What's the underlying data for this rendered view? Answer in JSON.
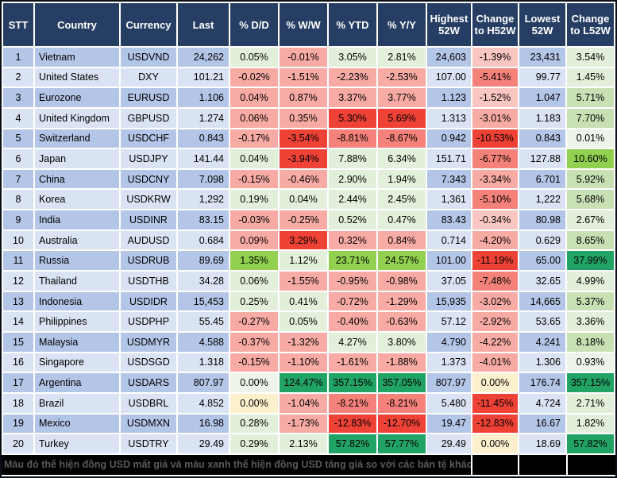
{
  "palette": {
    "header_bg": "#263e63",
    "header_text": "#ffffff",
    "row_odd": "#b4c6e7",
    "row_even": "#dae3f3",
    "grid_gap": "#ffffff",
    "frame_border": "#0b0f1a",
    "footer_bg": "#000000",
    "footer_text": "#5a5a5a",
    "G0": "#eef5e8",
    "G1": "#e2efda",
    "G2": "#c9e0b4",
    "G3": "#92d050",
    "G4": "#21a366",
    "Y": "#fdf0cd",
    "P1": "#fbc6c1",
    "P2": "#f8aba4",
    "R3": "#f5827a",
    "R4": "#ef4237"
  },
  "chart_data": {
    "type": "table",
    "title": "",
    "columns": [
      "STT",
      "Country",
      "Currency",
      "Last",
      "% D/D",
      "% W/W",
      "% YTD",
      "% Y/Y",
      "Highest 52W",
      "Change to H52W",
      "Lowest 52W",
      "Change to L52W"
    ],
    "column_keys": [
      "stt",
      "country",
      "currency",
      "last",
      "pct-dd",
      "pct-ww",
      "pct-ytd",
      "pct-yy",
      "highest-52w",
      "change-to-h52w",
      "lowest-52w",
      "change-to-l52w"
    ],
    "rows": [
      [
        "1",
        "Vietnam",
        "USDVND",
        "24,262",
        "0.05%",
        "-0.01%",
        "3.05%",
        "2.81%",
        "24,603",
        "-1.39%",
        "23,431",
        "3.54%"
      ],
      [
        "2",
        "United States",
        "DXY",
        "101.21",
        "-0.02%",
        "-1.51%",
        "-2.23%",
        "-2.53%",
        "107.00",
        "-5.41%",
        "99.77",
        "1.45%"
      ],
      [
        "3",
        "Eurozone",
        "EURUSD",
        "1.106",
        "0.04%",
        "0.87%",
        "3.37%",
        "3.77%",
        "1.123",
        "-1.52%",
        "1.047",
        "5.71%"
      ],
      [
        "4",
        "United Kingdom",
        "GBPUSD",
        "1.274",
        "0.06%",
        "0.35%",
        "5.30%",
        "5.69%",
        "1.313",
        "-3.01%",
        "1.183",
        "7.70%"
      ],
      [
        "5",
        "Switzerland",
        "USDCHF",
        "0.843",
        "-0.17%",
        "-3.54%",
        "-8.81%",
        "-8.67%",
        "0.942",
        "-10.53%",
        "0.843",
        "0.01%"
      ],
      [
        "6",
        "Japan",
        "USDJPY",
        "141.44",
        "0.04%",
        "-3.94%",
        "7.88%",
        "6.34%",
        "151.71",
        "-6.77%",
        "127.88",
        "10.60%"
      ],
      [
        "7",
        "China",
        "USDCNY",
        "7.098",
        "-0.15%",
        "-0.46%",
        "2.90%",
        "1.94%",
        "7.343",
        "-3.34%",
        "6.701",
        "5.92%"
      ],
      [
        "8",
        "Korea",
        "USDKRW",
        "1,292",
        "0.19%",
        "0.04%",
        "2.44%",
        "2.45%",
        "1,361",
        "-5.10%",
        "1,222",
        "5.68%"
      ],
      [
        "9",
        "India",
        "USDINR",
        "83.15",
        "-0.03%",
        "-0.25%",
        "0.52%",
        "0.47%",
        "83.43",
        "-0.34%",
        "80.98",
        "2.67%"
      ],
      [
        "10",
        "Australia",
        "AUDUSD",
        "0.684",
        "0.09%",
        "3.29%",
        "0.32%",
        "0.84%",
        "0.714",
        "-4.20%",
        "0.629",
        "8.65%"
      ],
      [
        "11",
        "Russia",
        "USDRUB",
        "89.69",
        "1.35%",
        "1.12%",
        "23.71%",
        "24.57%",
        "101.00",
        "-11.19%",
        "65.00",
        "37.99%"
      ],
      [
        "12",
        "Thailand",
        "USDTHB",
        "34.28",
        "0.06%",
        "-1.55%",
        "-0.95%",
        "-0.98%",
        "37.05",
        "-7.48%",
        "32.65",
        "4.99%"
      ],
      [
        "13",
        "Indonesia",
        "USDIDR",
        "15,453",
        "0.25%",
        "0.41%",
        "-0.72%",
        "-1.29%",
        "15,935",
        "-3.02%",
        "14,665",
        "5.37%"
      ],
      [
        "14",
        "Philippines",
        "USDPHP",
        "55.45",
        "-0.27%",
        "0.05%",
        "-0.40%",
        "-0.63%",
        "57.12",
        "-2.92%",
        "53.65",
        "3.36%"
      ],
      [
        "15",
        "Malaysia",
        "USDMYR",
        "4.588",
        "-0.37%",
        "-1.32%",
        "4.27%",
        "3.80%",
        "4.790",
        "-4.22%",
        "4.241",
        "8.18%"
      ],
      [
        "16",
        "Singapore",
        "USDSGD",
        "1.318",
        "-0.15%",
        "-1.10%",
        "-1.61%",
        "-1.88%",
        "1.373",
        "-4.01%",
        "1.306",
        "0.93%"
      ],
      [
        "17",
        "Argentina",
        "USDARS",
        "807.97",
        "0.00%",
        "124.47%",
        "357.15%",
        "357.05%",
        "807.97",
        "0.00%",
        "176.74",
        "357.15%"
      ],
      [
        "18",
        "Brazil",
        "USDBRL",
        "4.852",
        "0.00%",
        "-1.04%",
        "-8.21%",
        "-8.21%",
        "5.480",
        "-11.45%",
        "4.724",
        "2.71%"
      ],
      [
        "19",
        "Mexico",
        "USDMXN",
        "16.98",
        "0.28%",
        "-1.73%",
        "-12.83%",
        "-12.70%",
        "19.47",
        "-12.83%",
        "16.67",
        "1.82%"
      ],
      [
        "20",
        "Turkey",
        "USDTRY",
        "29.49",
        "0.29%",
        "2.13%",
        "57.82%",
        "57.77%",
        "29.49",
        "0.00%",
        "18.69",
        "57.82%"
      ]
    ],
    "cell_colors": [
      [
        "",
        "",
        "",
        "",
        "G1",
        "P2",
        "G1",
        "G1",
        "",
        "P1",
        "",
        "G1"
      ],
      [
        "",
        "",
        "",
        "",
        "P2",
        "P2",
        "P2",
        "P2",
        "",
        "R3",
        "",
        "G1"
      ],
      [
        "",
        "",
        "",
        "",
        "P2",
        "P2",
        "P2",
        "P2",
        "",
        "P1",
        "",
        "G2"
      ],
      [
        "",
        "",
        "",
        "",
        "P2",
        "P2",
        "R4",
        "R4",
        "",
        "P2",
        "",
        "G2"
      ],
      [
        "",
        "",
        "",
        "",
        "P2",
        "R4",
        "R3",
        "R3",
        "",
        "R4",
        "",
        "G0"
      ],
      [
        "",
        "",
        "",
        "",
        "G1",
        "R4",
        "G1",
        "G1",
        "",
        "R3",
        "",
        "G3"
      ],
      [
        "",
        "",
        "",
        "",
        "P2",
        "P2",
        "G1",
        "G1",
        "",
        "P2",
        "",
        "G2"
      ],
      [
        "",
        "",
        "",
        "",
        "G1",
        "G1",
        "G1",
        "G1",
        "",
        "R3",
        "",
        "G2"
      ],
      [
        "",
        "",
        "",
        "",
        "P2",
        "P2",
        "G1",
        "G1",
        "",
        "P1",
        "",
        "G1"
      ],
      [
        "",
        "",
        "",
        "",
        "P2",
        "R4",
        "P2",
        "P2",
        "",
        "P2",
        "",
        "G2"
      ],
      [
        "",
        "",
        "",
        "",
        "G3",
        "G1",
        "G3",
        "G3",
        "",
        "R4",
        "",
        "G4"
      ],
      [
        "",
        "",
        "",
        "",
        "G1",
        "P2",
        "P2",
        "P2",
        "",
        "R3",
        "",
        "G1"
      ],
      [
        "",
        "",
        "",
        "",
        "G1",
        "G1",
        "P2",
        "P2",
        "",
        "P2",
        "",
        "G2"
      ],
      [
        "",
        "",
        "",
        "",
        "P2",
        "G1",
        "P2",
        "P2",
        "",
        "P2",
        "",
        "G1"
      ],
      [
        "",
        "",
        "",
        "",
        "P2",
        "P2",
        "G1",
        "G1",
        "",
        "P2",
        "",
        "G2"
      ],
      [
        "",
        "",
        "",
        "",
        "P2",
        "P2",
        "P2",
        "P2",
        "",
        "P2",
        "",
        "G0"
      ],
      [
        "",
        "",
        "",
        "",
        "G0",
        "G4",
        "G4",
        "G4",
        "",
        "Y",
        "",
        "G4"
      ],
      [
        "",
        "",
        "",
        "",
        "Y",
        "P2",
        "R3",
        "R3",
        "",
        "R4",
        "",
        "G1"
      ],
      [
        "",
        "",
        "",
        "",
        "G1",
        "P2",
        "R4",
        "R4",
        "",
        "R4",
        "",
        "G1"
      ],
      [
        "",
        "",
        "",
        "",
        "G1",
        "G1",
        "G4",
        "G4",
        "",
        "Y",
        "",
        "G4"
      ]
    ],
    "column_alignments": [
      "center",
      "left",
      "center",
      "right",
      "center",
      "center",
      "center",
      "center",
      "right",
      "center",
      "right",
      "center"
    ],
    "footnote": "Màu đỏ thể hiện đồng USD mất giá và màu xanh thể hiện đồng USD tăng giá so với các bản tệ khác."
  }
}
